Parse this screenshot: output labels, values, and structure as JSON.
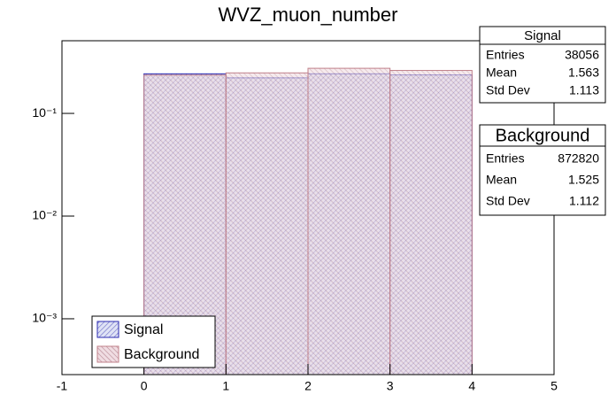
{
  "chart_data": {
    "type": "histogram",
    "title": "WVZ_muon_number",
    "bins": [
      0,
      1,
      2,
      3,
      4
    ],
    "series": [
      {
        "name": "Signal",
        "color": "#2a2ab0",
        "values": [
          0.243,
          0.222,
          0.243,
          0.237
        ]
      },
      {
        "name": "Background",
        "color": "#c0808a",
        "values": [
          0.236,
          0.248,
          0.275,
          0.262
        ]
      }
    ],
    "xlim": [
      -1,
      5
    ],
    "xticks": [
      -1,
      0,
      1,
      2,
      3,
      4,
      5
    ],
    "ylim": [
      0.000286,
      0.51
    ],
    "log_y": true,
    "yticks": [
      {
        "value": 0.001,
        "label": "10⁻³"
      },
      {
        "value": 0.01,
        "label": "10⁻²"
      },
      {
        "value": 0.1,
        "label": "10⁻¹"
      }
    ],
    "legend": "bottom-left",
    "stats": [
      {
        "title": "Signal",
        "rows": [
          [
            "Entries",
            "38056"
          ],
          [
            "Mean",
            "1.563"
          ],
          [
            "Std Dev",
            "1.113"
          ]
        ]
      },
      {
        "title": "Background",
        "rows": [
          [
            "Entries",
            "872820"
          ],
          [
            "Mean",
            "1.525"
          ],
          [
            "Std Dev",
            "1.112"
          ]
        ]
      }
    ]
  }
}
